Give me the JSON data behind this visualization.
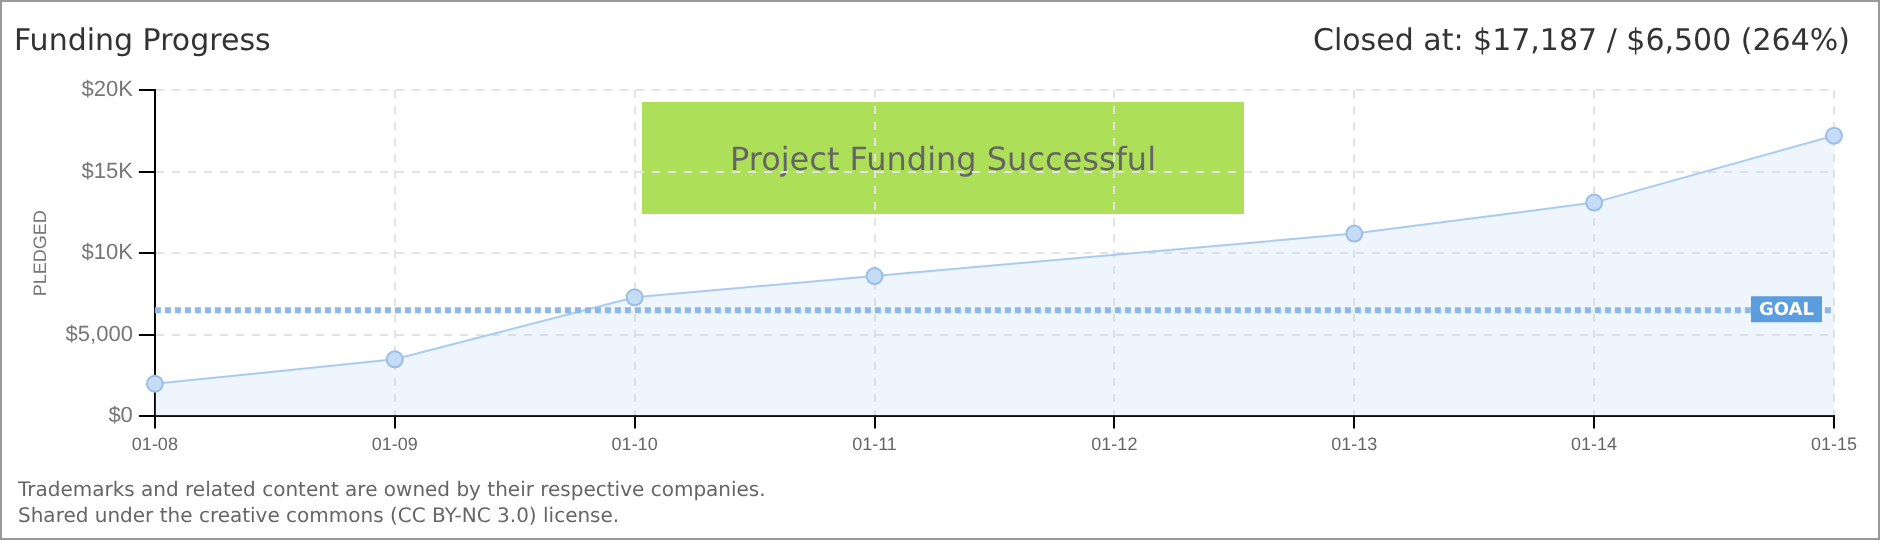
{
  "chart_data": {
    "type": "area",
    "title": "Funding Progress",
    "subtitle": "Closed at: $17,187 / $6,500 (264%)",
    "ylabel": "PLEDGED",
    "categories": [
      "01-08",
      "01-09",
      "01-10",
      "01-11",
      "01-12",
      "01-13",
      "01-14",
      "01-15"
    ],
    "series": [
      {
        "color": "#a9cbf0",
        "values": [
          2000,
          3500,
          7300,
          8600,
          null,
          11200,
          13100,
          17200
        ]
      }
    ],
    "ylim": [
      0,
      20000
    ],
    "yticks": [
      {
        "value": 0,
        "label": "$0"
      },
      {
        "value": 5000,
        "label": "$5,000"
      },
      {
        "value": 10000,
        "label": "$10K"
      },
      {
        "value": 15000,
        "label": "$15K"
      },
      {
        "value": 20000,
        "label": "$20K"
      }
    ],
    "grid": true,
    "marker": "circle",
    "legend": false,
    "ref_lines": [
      {
        "axis": "y",
        "value": 6500,
        "label": "GOAL",
        "color": "#8fb8e8",
        "line_style": "dotted"
      }
    ],
    "annotations": [
      "Project Funding Successful",
      "Trademarks and related content are owned by their respective companies.",
      "Shared under the creative commons (CC BY-NC 3.0) license."
    ]
  }
}
